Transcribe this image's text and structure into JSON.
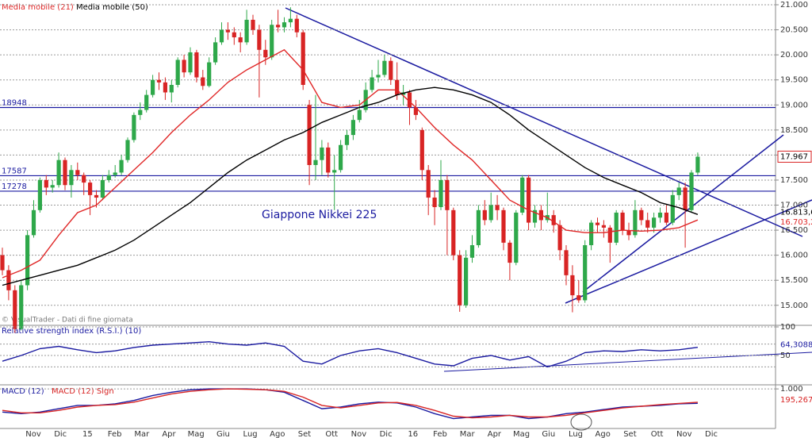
{
  "chart_data": [
    {
      "type": "candlestick",
      "annotation": "Giappone Nikkei 225",
      "note": "© VisualTrader - Dati di fine giornata",
      "xtick_labels": [
        "Nov",
        "Dic",
        "15",
        "Feb",
        "Mar",
        "Apr",
        "Mag",
        "Giu",
        "Lug",
        "Ago",
        "Set",
        "Ott",
        "Nov",
        "Dic",
        "16",
        "Feb",
        "Mar",
        "Apr",
        "Mag",
        "Giu",
        "Lug",
        "Ago",
        "Set",
        "Ott",
        "Nov",
        "Dic"
      ],
      "open": [
        16000,
        15700,
        15300,
        14530,
        15400,
        16400,
        16900,
        17500,
        17350,
        17400,
        17900,
        17400,
        17700,
        17600,
        17450,
        17200,
        17150,
        17500,
        17600,
        17650,
        17900,
        18300,
        18800,
        18900,
        19200,
        19500,
        19450,
        19250,
        19400,
        19900,
        19650,
        20050,
        19550,
        19380,
        19850,
        20250,
        20500,
        20450,
        20350,
        20250,
        20700,
        20500,
        20100,
        19950,
        20600,
        20550,
        20650,
        20720,
        20450,
        19000,
        17800,
        17900,
        18150,
        17650,
        17700,
        18200,
        18400,
        18700,
        18900,
        19300,
        19550,
        19600,
        19880,
        19500,
        19200,
        19250,
        18950,
        18500,
        17700,
        17150,
        16960,
        17500,
        16900,
        16000,
        15000,
        15950,
        16200,
        16900,
        16700,
        17000,
        16900,
        16250,
        15850,
        16850,
        17550,
        16650,
        16900,
        16700,
        16800,
        16600,
        16100,
        15600,
        15200,
        15100,
        16200,
        16650,
        16600,
        16550,
        16250,
        16850,
        16500,
        16400,
        16900,
        16700,
        16550,
        16750,
        16850,
        16650,
        17200,
        17350,
        16900,
        17650
      ],
      "high": [
        16150,
        15800,
        15400,
        15500,
        16500,
        17100,
        17550,
        17600,
        17500,
        18050,
        17950,
        17800,
        17850,
        17650,
        17500,
        17300,
        17600,
        17700,
        17800,
        18000,
        18350,
        18850,
        19050,
        19300,
        19600,
        19650,
        19550,
        19500,
        19950,
        20000,
        20150,
        20100,
        19700,
        19950,
        20350,
        20650,
        20650,
        20550,
        20450,
        20900,
        20800,
        20600,
        20300,
        20700,
        20900,
        20750,
        20950,
        20800,
        20500,
        19100,
        19200,
        18300,
        18250,
        18000,
        18300,
        18500,
        18800,
        19100,
        19450,
        19700,
        19900,
        20000,
        19950,
        19850,
        19400,
        19300,
        19100,
        18550,
        17800,
        17300,
        17900,
        17600,
        16950,
        16100,
        16100,
        16400,
        17000,
        17100,
        17250,
        17200,
        16950,
        16300,
        16900,
        17600,
        17600,
        17000,
        17000,
        17250,
        16900,
        16700,
        16200,
        15800,
        15500,
        16300,
        16700,
        16750,
        16700,
        16600,
        16900,
        16900,
        16650,
        17100,
        16950,
        16850,
        16850,
        16950,
        17000,
        17300,
        17450,
        17450,
        17700,
        18050
      ],
      "low": [
        15600,
        15100,
        14450,
        14500,
        15300,
        16350,
        16850,
        17200,
        17250,
        17350,
        17300,
        17150,
        17500,
        17200,
        16800,
        16950,
        17100,
        17450,
        17550,
        17600,
        17850,
        18250,
        18700,
        18850,
        19150,
        19300,
        19100,
        19050,
        19350,
        19550,
        19600,
        19450,
        19300,
        19350,
        19800,
        20200,
        20300,
        20200,
        20050,
        20200,
        20400,
        19150,
        19800,
        19900,
        20450,
        20450,
        20550,
        20350,
        19300,
        17400,
        17500,
        17600,
        17550,
        16900,
        17650,
        18100,
        18300,
        18650,
        18850,
        19250,
        19450,
        19550,
        19400,
        19100,
        19000,
        18600,
        18700,
        17500,
        16800,
        16600,
        16900,
        16000,
        15900,
        14870,
        14950,
        15850,
        16150,
        16600,
        16650,
        16700,
        16100,
        15500,
        15800,
        16800,
        16500,
        16550,
        16500,
        16650,
        16450,
        15900,
        15400,
        14860,
        15050,
        15050,
        16100,
        16450,
        16350,
        15850,
        16200,
        16400,
        16300,
        16350,
        16600,
        16450,
        16450,
        16650,
        16600,
        16600,
        17100,
        16150,
        16850,
        17600
      ],
      "close": [
        15700,
        15300,
        14530,
        15400,
        16400,
        16900,
        17500,
        17350,
        17400,
        17900,
        17400,
        17700,
        17600,
        17450,
        17200,
        17150,
        17500,
        17600,
        17650,
        17900,
        18300,
        18800,
        18900,
        19200,
        19500,
        19450,
        19250,
        19400,
        19900,
        19650,
        20050,
        19550,
        19380,
        19850,
        20250,
        20500,
        20450,
        20350,
        20250,
        20700,
        20500,
        20100,
        19950,
        20600,
        20550,
        20650,
        20720,
        20450,
        19400,
        17800,
        17900,
        18150,
        17650,
        17700,
        18200,
        18400,
        18700,
        18900,
        19300,
        19550,
        19600,
        19880,
        19500,
        19200,
        19250,
        18950,
        18800,
        17700,
        17150,
        16960,
        17500,
        16900,
        16000,
        15000,
        15950,
        16200,
        16900,
        16700,
        17000,
        16900,
        16250,
        15850,
        16850,
        17550,
        16650,
        16900,
        16700,
        16800,
        16600,
        16100,
        15600,
        15200,
        15100,
        16200,
        16650,
        16600,
        16550,
        16250,
        16850,
        16500,
        16400,
        16900,
        16700,
        16550,
        16750,
        16850,
        16650,
        17200,
        17350,
        16900,
        17650,
        17967
      ],
      "last_label": "17.967",
      "up_color": "#2ea84a",
      "down_color": "#d82424",
      "ylim": [
        14600,
        21000
      ],
      "yticks": [
        {
          "value": 15000,
          "label": "15.000"
        },
        {
          "value": 15500,
          "label": "15.500"
        },
        {
          "value": 16000,
          "label": "16.000"
        },
        {
          "value": 16500,
          "label": "16.500"
        },
        {
          "value": 17000,
          "label": "17.000"
        },
        {
          "value": 17500,
          "label": "17.500"
        },
        {
          "value": 18000,
          "label": "18.000"
        },
        {
          "value": 18500,
          "label": "18.500"
        },
        {
          "value": 19000,
          "label": "19.000"
        },
        {
          "value": 19500,
          "label": "19.500"
        },
        {
          "value": 20000,
          "label": "20.000"
        },
        {
          "value": 20500,
          "label": "20.500"
        },
        {
          "value": 21000,
          "label": "21.000"
        }
      ],
      "grid": true,
      "hlines": [
        18948,
        17587,
        17278
      ],
      "hline_color": "#1a1aa0",
      "series": [
        {
          "name": "Media mobile (21)",
          "color": "#e02828",
          "last_label": "16.703,2",
          "values": [
            15550,
            15700,
            15900,
            16400,
            16850,
            17000,
            17350,
            17700,
            18050,
            18450,
            18800,
            19100,
            19450,
            19700,
            19900,
            20100,
            19700,
            19050,
            18950,
            19000,
            19300,
            19300,
            18950,
            18550,
            18200,
            17900,
            17500,
            17100,
            16900,
            16750,
            16500,
            16450,
            16450,
            16500,
            16480,
            16500,
            16550,
            16703.2
          ]
        },
        {
          "name": "Media mobile (50)",
          "color": "#000000",
          "last_label": "16.813,6",
          "values": [
            15400,
            15500,
            15600,
            15700,
            15800,
            15950,
            16100,
            16300,
            16550,
            16800,
            17050,
            17350,
            17650,
            17900,
            18100,
            18300,
            18450,
            18650,
            18800,
            18950,
            19050,
            19200,
            19300,
            19350,
            19300,
            19200,
            19050,
            18800,
            18500,
            18250,
            18000,
            17750,
            17550,
            17400,
            17250,
            17050,
            16950,
            16813.6
          ]
        }
      ]
    },
    {
      "type": "line",
      "title": "Relative strength index (R.S.I.) (10)",
      "ylim": [
        0,
        100
      ],
      "yticks": [
        50,
        100
      ],
      "levels": [
        30,
        70
      ],
      "grid": true,
      "series": [
        {
          "color": "#1a1aa0",
          "last_label": "64,3088",
          "values": [
            40,
            50,
            62,
            66,
            60,
            55,
            58,
            64,
            68,
            70,
            72,
            74,
            70,
            68,
            72,
            66,
            40,
            35,
            50,
            58,
            62,
            55,
            45,
            35,
            32,
            45,
            50,
            42,
            48,
            30,
            40,
            55,
            58,
            57,
            60,
            58,
            60,
            64.3088
          ]
        }
      ]
    },
    {
      "type": "line",
      "ylim": [
        -1300,
        1150
      ],
      "yticks": [
        {
          "value": 1000,
          "label": "1.000"
        }
      ],
      "grid": true,
      "series": [
        {
          "name": "MACD (12)",
          "color": "#1a1aa0",
          "values": [
            -400,
            -500,
            -400,
            -200,
            0,
            0,
            100,
            300,
            600,
            800,
            950,
            1000,
            1000,
            1000,
            950,
            800,
            300,
            -200,
            -100,
            100,
            200,
            150,
            -100,
            -500,
            -800,
            -700,
            -600,
            -600,
            -800,
            -700,
            -500,
            -400,
            -250,
            -100,
            -50,
            0,
            100,
            127
          ]
        },
        {
          "name": "MACD (12) Sign",
          "color": "#d82424",
          "last_label": "195,267",
          "values": [
            -300,
            -450,
            -450,
            -300,
            -100,
            0,
            50,
            200,
            450,
            700,
            850,
            950,
            1000,
            980,
            950,
            850,
            500,
            0,
            -150,
            0,
            150,
            180,
            0,
            -300,
            -650,
            -750,
            -700,
            -600,
            -700,
            -700,
            -600,
            -450,
            -300,
            -150,
            -50,
            50,
            120,
            195.267
          ]
        }
      ]
    }
  ]
}
